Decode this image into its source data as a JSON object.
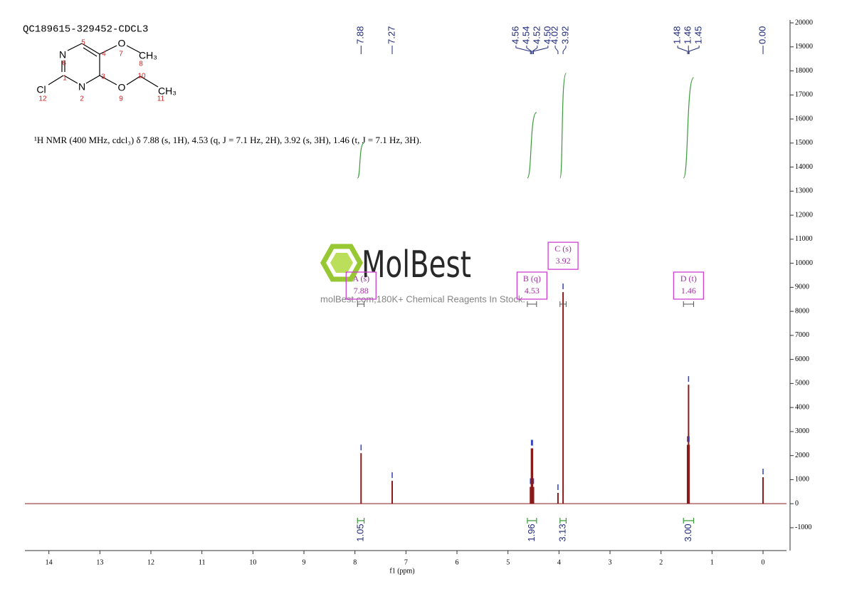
{
  "title": "QC189615-329452-CDCL3",
  "structure": {
    "atoms": [
      "N",
      "N",
      "Cl",
      "O",
      "CH₃",
      "O",
      "CH₃"
    ],
    "atom_numbers": [
      "1",
      "2",
      "3",
      "4",
      "5",
      "6",
      "7",
      "8",
      "9",
      "10",
      "11",
      "12"
    ]
  },
  "description": "¹H NMR (400 MHz, cdcl₃) δ 7.88 (s, 1H), 4.53 (q, J = 7.1 Hz, 2H), 3.92 (s, 3H), 1.46 (t, J = 7.1 Hz, 3H).",
  "watermark": {
    "brand": "MolBest",
    "tagline": "molBest.com,180K+ Chemical Reagents In Stock."
  },
  "chart_data": {
    "type": "nmr",
    "x_label": "f1 (ppm)",
    "color": "#8b1a1a",
    "xlim": [
      14.47,
      -0.46
    ],
    "xticks": [
      14,
      13,
      12,
      11,
      10,
      9,
      8,
      7,
      6,
      5,
      4,
      3,
      2,
      1,
      0
    ],
    "ylim": [
      -1950,
      20120
    ],
    "yticks": [
      -1000,
      0,
      1000,
      2000,
      3000,
      4000,
      5000,
      6000,
      7000,
      8000,
      9000,
      10000,
      11000,
      12000,
      13000,
      14000,
      15000,
      16000,
      17000,
      18000,
      19000,
      20000
    ],
    "peaks": {
      "x": [
        7.88,
        7.27,
        4.56,
        4.54,
        4.52,
        4.5,
        4.02,
        3.92,
        1.48,
        1.46,
        1.45,
        0
      ],
      "x_labels": [
        "7.88",
        "7.27",
        "4.56",
        "4.54",
        "4.52",
        "4.50",
        "4.02",
        "3.92",
        "1.48",
        "1.46",
        "1.45",
        "0.00"
      ],
      "values": [
        2100,
        950,
        700,
        2300,
        2300,
        700,
        450,
        8800,
        2450,
        4950,
        2450,
        1100
      ]
    },
    "integrals": {
      "color": "#3a9a3a",
      "ranges": [
        [
          7.95,
          7.82
        ],
        [
          4.62,
          4.44
        ],
        [
          3.98,
          3.86
        ],
        [
          1.56,
          1.36
        ]
      ],
      "values": [
        1.05,
        1.96,
        3.13,
        3
      ],
      "value_labels": [
        "1.05",
        "1.96",
        "3.13",
        "3.00"
      ]
    },
    "multiplets": {
      "color": "#d040d0",
      "labels": [
        "A (s)",
        "B (q)",
        "C (s)",
        "D (t)"
      ],
      "shifts": [
        7.88,
        4.53,
        3.92,
        1.46
      ]
    }
  }
}
